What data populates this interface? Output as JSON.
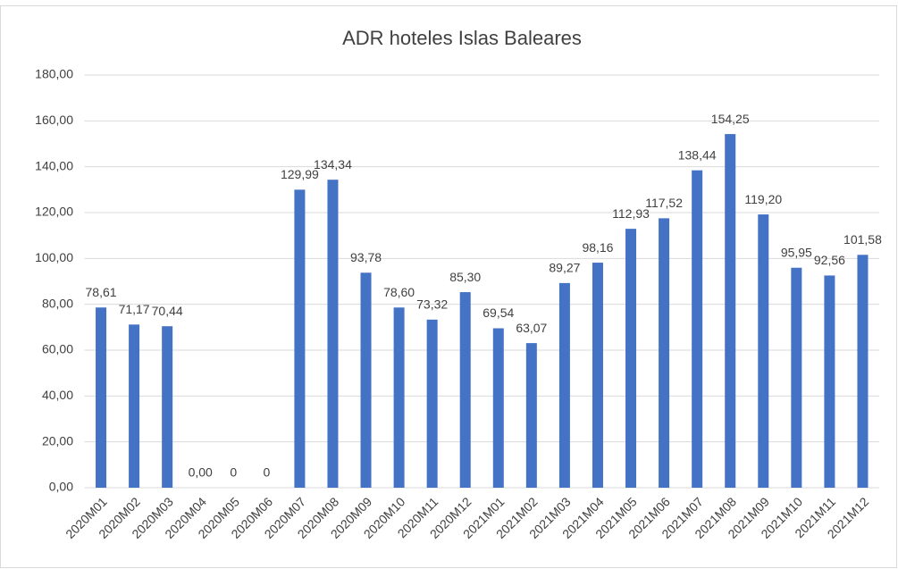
{
  "chart_data": {
    "type": "bar",
    "title": "ADR hoteles Islas Baleares",
    "categories": [
      "2020M01",
      "2020M02",
      "2020M03",
      "2020M04",
      "2020M05",
      "2020M06",
      "2020M07",
      "2020M08",
      "2020M09",
      "2020M10",
      "2020M11",
      "2020M12",
      "2021M01",
      "2021M02",
      "2021M03",
      "2021M04",
      "2021M05",
      "2021M06",
      "2021M07",
      "2021M08",
      "2021M09",
      "2021M10",
      "2021M11",
      "2021M12"
    ],
    "values": [
      78.61,
      71.17,
      70.44,
      0,
      0,
      0,
      129.99,
      134.34,
      93.78,
      78.6,
      73.32,
      85.3,
      69.54,
      63.07,
      89.27,
      98.16,
      112.93,
      117.52,
      138.44,
      154.25,
      119.2,
      95.95,
      92.56,
      101.58
    ],
    "value_labels": [
      "78,61",
      "71,17",
      "70,44",
      "0,00",
      "0",
      "0",
      "129,99",
      "134,34",
      "93,78",
      "78,60",
      "73,32",
      "85,30",
      "69,54",
      "63,07",
      "89,27",
      "98,16",
      "112,93",
      "117,52",
      "138,44",
      "154,25",
      "119,20",
      "95,95",
      "92,56",
      "101,58"
    ],
    "color": "#4472c4",
    "ylim": [
      0,
      180
    ],
    "yticks": [
      {
        "value": 0,
        "label": "0,00"
      },
      {
        "value": 20,
        "label": "20,00"
      },
      {
        "value": 40,
        "label": "40,00"
      },
      {
        "value": 60,
        "label": "60,00"
      },
      {
        "value": 80,
        "label": "80,00"
      },
      {
        "value": 100,
        "label": "100,00"
      },
      {
        "value": 120,
        "label": "120,00"
      },
      {
        "value": 140,
        "label": "140,00"
      },
      {
        "value": 160,
        "label": "160,00"
      },
      {
        "value": 180,
        "label": "180,00"
      }
    ],
    "grid": true
  }
}
